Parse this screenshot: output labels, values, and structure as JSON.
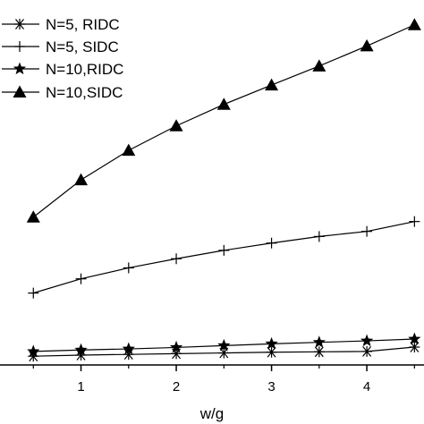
{
  "chart_data": {
    "type": "line",
    "title": "",
    "xlabel": "w/g",
    "ylabel": "",
    "xlim": [
      0.15,
      4.6
    ],
    "ylim": [
      0,
      1.0
    ],
    "grid": false,
    "legend_position": "top-left",
    "x_ticks": [
      "1",
      "2",
      "3",
      "4"
    ],
    "x_tick_values": [
      1,
      2,
      3,
      4
    ],
    "series": [
      {
        "name": "N=5, RIDC",
        "marker": "asterisk",
        "x": [
          0.5,
          1,
          1.5,
          2,
          2.5,
          3,
          3.5,
          4,
          4.5
        ],
        "y": [
          0.024,
          0.027,
          0.029,
          0.031,
          0.033,
          0.035,
          0.036,
          0.037,
          0.049
        ]
      },
      {
        "name": "N=5, SIDC",
        "marker": "plus",
        "x": [
          0.5,
          1,
          1.5,
          2,
          2.5,
          3,
          3.5,
          4,
          4.5
        ],
        "y": [
          0.197,
          0.236,
          0.266,
          0.291,
          0.314,
          0.334,
          0.352,
          0.366,
          0.393
        ]
      },
      {
        "name": "N=10,RIDC",
        "marker": "star",
        "x": [
          0.5,
          1,
          1.5,
          2,
          2.5,
          3,
          3.5,
          4,
          4.5
        ],
        "y": [
          0.037,
          0.041,
          0.044,
          0.048,
          0.053,
          0.058,
          0.062,
          0.066,
          0.071
        ]
      },
      {
        "name": "N=10,SIDC",
        "marker": "triangle",
        "x": [
          0.5,
          1,
          1.5,
          2,
          2.5,
          3,
          3.5,
          4,
          4.5
        ],
        "y": [
          0.405,
          0.507,
          0.588,
          0.655,
          0.714,
          0.767,
          0.819,
          0.874,
          0.932
        ]
      }
    ]
  }
}
